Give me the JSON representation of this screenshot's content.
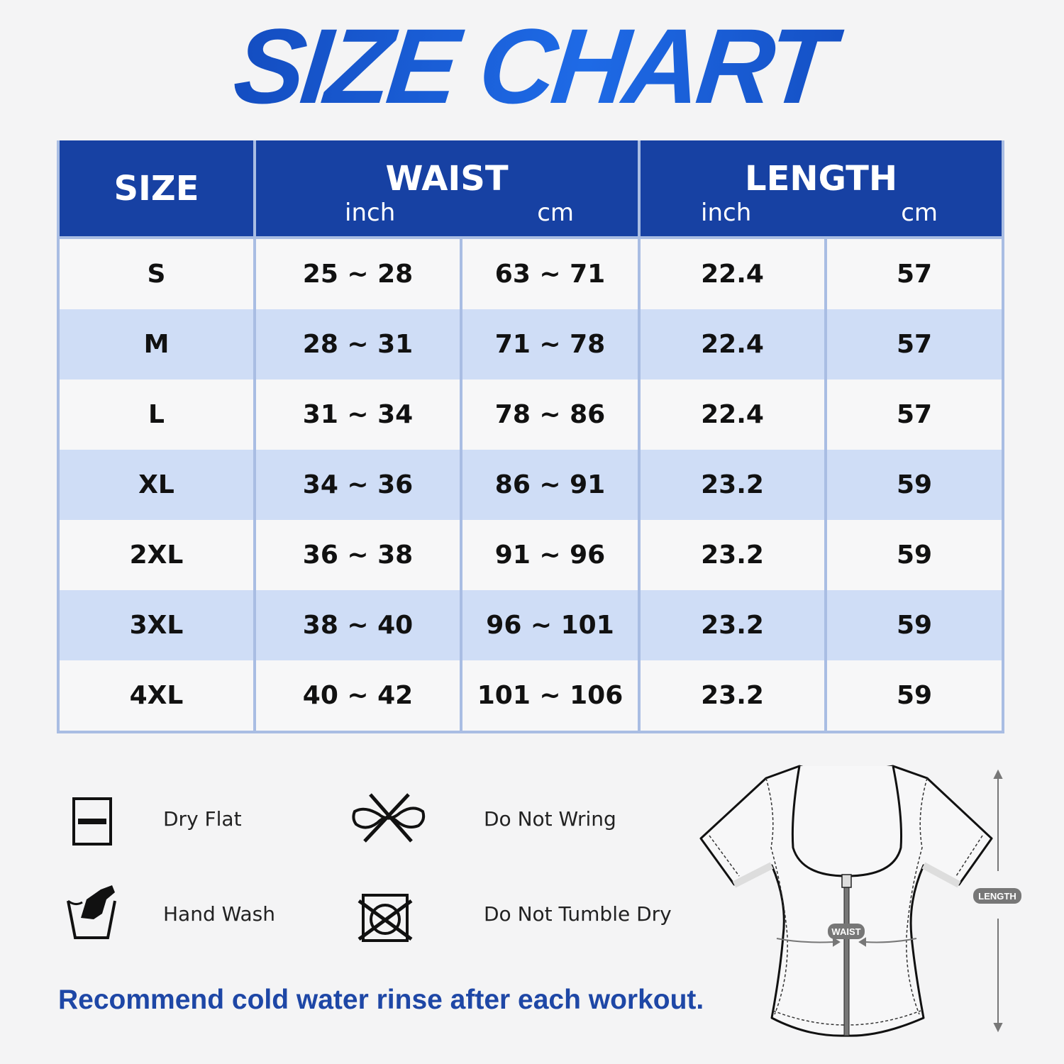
{
  "title": "SIZE CHART",
  "table": {
    "headers": {
      "size": "SIZE",
      "waist": "WAIST",
      "length": "LENGTH",
      "inch": "inch",
      "cm": "cm"
    },
    "rows": [
      {
        "size": "S",
        "waist_inch": "25 ~ 28",
        "waist_cm": "63 ~ 71",
        "length_inch": "22.4",
        "length_cm": "57"
      },
      {
        "size": "M",
        "waist_inch": "28 ~ 31",
        "waist_cm": "71 ~ 78",
        "length_inch": "22.4",
        "length_cm": "57"
      },
      {
        "size": "L",
        "waist_inch": "31 ~ 34",
        "waist_cm": "78 ~ 86",
        "length_inch": "22.4",
        "length_cm": "57"
      },
      {
        "size": "XL",
        "waist_inch": "34 ~ 36",
        "waist_cm": "86 ~ 91",
        "length_inch": "23.2",
        "length_cm": "59"
      },
      {
        "size": "2XL",
        "waist_inch": "36 ~ 38",
        "waist_cm": "91 ~ 96",
        "length_inch": "23.2",
        "length_cm": "59"
      },
      {
        "size": "3XL",
        "waist_inch": "38 ~ 40",
        "waist_cm": "96 ~ 101",
        "length_inch": "23.2",
        "length_cm": "59"
      },
      {
        "size": "4XL",
        "waist_inch": "40 ~ 42",
        "waist_cm": "101 ~ 106",
        "length_inch": "23.2",
        "length_cm": "59"
      }
    ]
  },
  "care": {
    "dry_flat": {
      "label": "Dry Flat",
      "icon": "dry-flat-icon"
    },
    "do_not_wring": {
      "label": "Do Not Wring",
      "icon": "do-not-wring-icon"
    },
    "hand_wash": {
      "label": "Hand Wash",
      "icon": "hand-wash-icon"
    },
    "do_not_tumble_dry": {
      "label": "Do Not Tumble Dry",
      "icon": "do-not-tumble-dry-icon"
    }
  },
  "note": "Recommend cold water rinse after each workout.",
  "diagram": {
    "waist_label": "WAIST",
    "length_label": "LENGTH"
  },
  "colors": {
    "header": "#1741a3",
    "alt_row": "#cfddf6",
    "title": "#1450c8",
    "note": "#1e47a6"
  }
}
